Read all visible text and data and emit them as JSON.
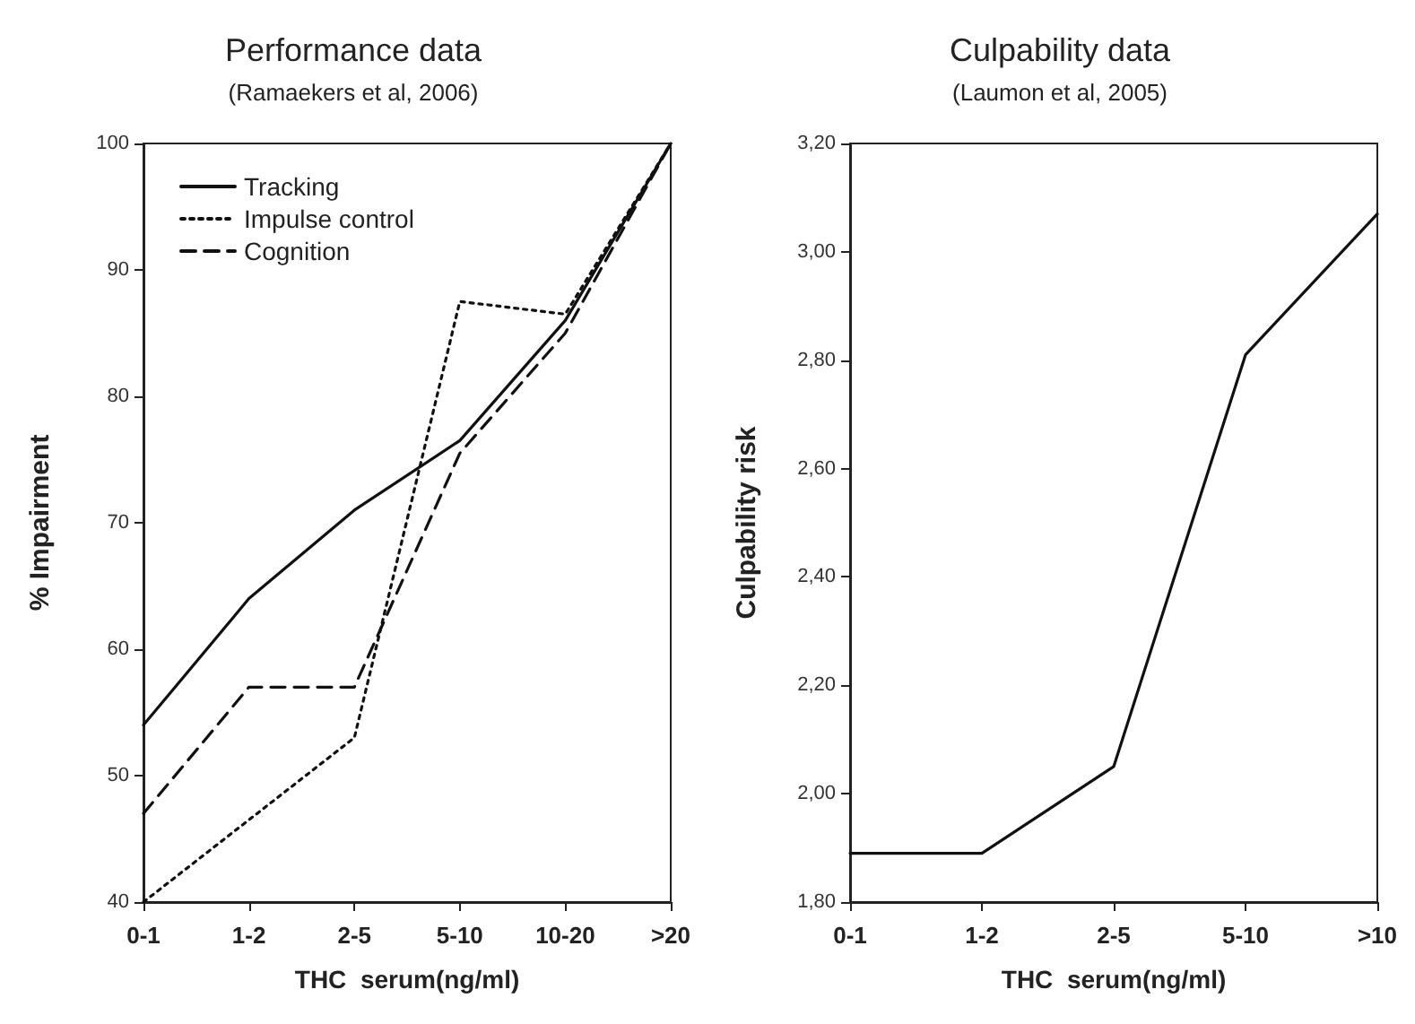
{
  "chart_data": [
    {
      "type": "line",
      "title": "Performance data",
      "subtitle": "(Ramaekers et al, 2006)",
      "xlabel": "THC  serum(ng/ml)",
      "ylabel": "% Impairment",
      "categories": [
        "0-1",
        "1-2",
        "2-5",
        "5-10",
        "10-20",
        ">20"
      ],
      "series": [
        {
          "name": "Tracking",
          "color": "#111111",
          "line_style": "solid",
          "values": [
            54,
            64,
            71,
            76.5,
            86,
            100
          ]
        },
        {
          "name": "Impulse control",
          "color": "#111111",
          "line_style": "dotted",
          "values": [
            40,
            46.5,
            53,
            87.5,
            86.5,
            100
          ]
        },
        {
          "name": "Cognition",
          "color": "#111111",
          "line_style": "dashed",
          "values": [
            47,
            57,
            57,
            75.5,
            85,
            100
          ]
        }
      ],
      "ylim": [
        40,
        100
      ],
      "yticks": [
        40,
        50,
        60,
        70,
        80,
        90,
        100
      ],
      "grid": false,
      "legend": "top left",
      "marker": "none"
    },
    {
      "type": "line",
      "title": "Culpability data",
      "subtitle": "(Laumon et al, 2005)",
      "xlabel": "THC  serum(ng/ml)",
      "ylabel": "Culpability risk",
      "categories": [
        "0-1",
        "1-2",
        "2-5",
        "5-10",
        ">10"
      ],
      "series": [
        {
          "color": "#111111",
          "values": [
            1.89,
            1.89,
            2.05,
            2.81,
            3.07
          ]
        }
      ],
      "ylim": [
        1.8,
        3.2
      ],
      "yticks": [
        {
          "value": 1.8,
          "label": "1,80"
        },
        {
          "value": 2.0,
          "label": "2,00"
        },
        {
          "value": 2.2,
          "label": "2,20"
        },
        {
          "value": 2.4,
          "label": "2,40"
        },
        {
          "value": 2.6,
          "label": "2,60"
        },
        {
          "value": 2.8,
          "label": "2,80"
        },
        {
          "value": 3.0,
          "label": "3,00"
        },
        {
          "value": 3.2,
          "label": "3,20"
        }
      ],
      "grid": false,
      "legend": false,
      "marker": "none"
    }
  ]
}
